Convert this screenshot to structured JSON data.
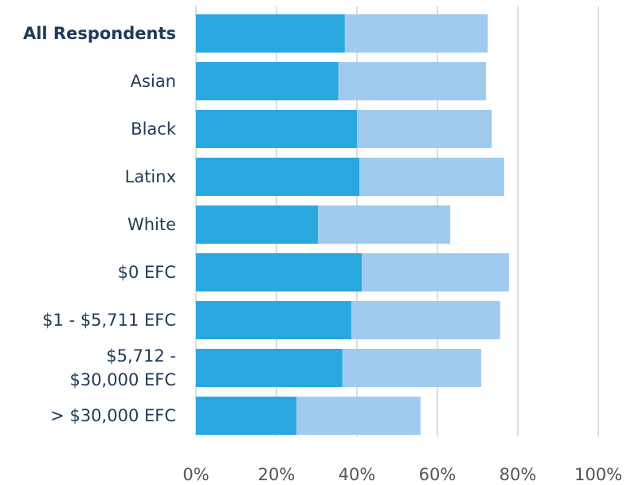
{
  "chart_data": {
    "type": "stacked-bar-horizontal",
    "categories": [
      "All Respondents",
      "Asian",
      "Black",
      "Latinx",
      "White",
      "$0 EFC",
      "$1 - $5,711 EFC",
      "$5,712 -\n$30,000 EFC",
      "> $30,000 EFC"
    ],
    "series": [
      {
        "color": "#29a8e0",
        "values": [
          37.0,
          35.4,
          40.0,
          40.6,
          30.3,
          41.2,
          38.6,
          36.4,
          25.0
        ]
      },
      {
        "color": "#a0cbee",
        "values": [
          35.5,
          36.7,
          33.5,
          36.0,
          32.9,
          36.6,
          37.0,
          34.5,
          30.8
        ]
      }
    ],
    "xlim": [
      0,
      100
    ],
    "xticks": [
      {
        "value": 0,
        "label": "0%"
      },
      {
        "value": 20,
        "label": "20%"
      },
      {
        "value": 40,
        "label": "40%"
      },
      {
        "value": 60,
        "label": "60%"
      },
      {
        "value": 80,
        "label": "80%"
      },
      {
        "value": 100,
        "label": "100%"
      }
    ],
    "grid": true
  }
}
